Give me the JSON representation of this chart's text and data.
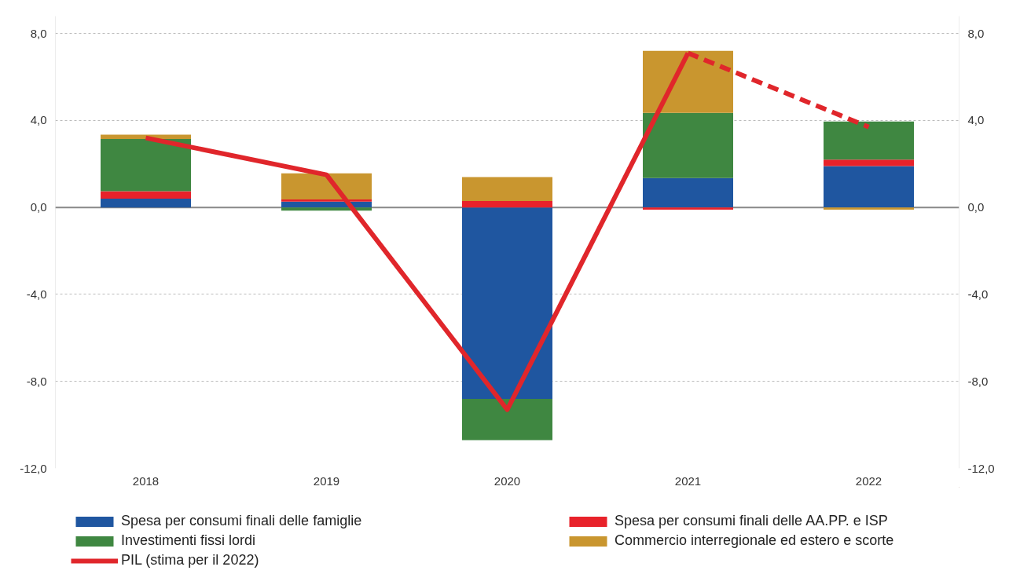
{
  "chart_data": {
    "type": "bar",
    "stacked": true,
    "categories": [
      "2018",
      "2019",
      "2020",
      "2021",
      "2022"
    ],
    "series": [
      {
        "name": "Spesa per consumi finali delle famiglie",
        "color": "#1f56a0",
        "values": [
          0.4,
          0.27,
          -8.8,
          1.35,
          1.9
        ]
      },
      {
        "name": "Spesa per consumi finali delle AA.PP. e ISP",
        "color": "#e8222a",
        "values": [
          0.35,
          0.1,
          0.3,
          -0.1,
          0.3
        ]
      },
      {
        "name": "Investimenti fissi lordi",
        "color": "#3f8741",
        "values": [
          2.4,
          -0.15,
          -1.9,
          3.0,
          1.75
        ]
      },
      {
        "name": "Commercio interregionale ed estero e scorte",
        "color": "#c9962f",
        "values": [
          0.2,
          1.2,
          1.1,
          2.85,
          -0.1
        ]
      },
      {
        "name": "PIL (stima per il 2022)",
        "type": "line",
        "color": "#e0262b",
        "line_style": "solid",
        "values": [
          3.2,
          1.5,
          -9.3,
          7.1,
          null
        ]
      },
      {
        "type": "line",
        "color": "#e0262b",
        "line_style": "dashed",
        "values": [
          null,
          null,
          null,
          7.1,
          3.7
        ]
      }
    ],
    "ylim": [
      -12,
      8.8
    ],
    "yticks": [
      {
        "value": -12,
        "label": "-12,0"
      },
      {
        "value": -8,
        "label": "-8,0"
      },
      {
        "value": -4,
        "label": "-4,0"
      },
      {
        "value": 0,
        "label": "0,0"
      },
      {
        "value": 4,
        "label": "4,0"
      },
      {
        "value": 8,
        "label": "8,0"
      }
    ],
    "y2lim": [
      -12,
      8.8
    ],
    "y2ticks": [
      {
        "value": -12,
        "label": "-12,0"
      },
      {
        "value": -8,
        "label": "-8,0"
      },
      {
        "value": -4,
        "label": "-4,0"
      },
      {
        "value": 0,
        "label": "0,0"
      },
      {
        "value": 4,
        "label": "4,0"
      },
      {
        "value": 8,
        "label": "8,0"
      }
    ],
    "grid": "y",
    "legend": "bottom"
  }
}
